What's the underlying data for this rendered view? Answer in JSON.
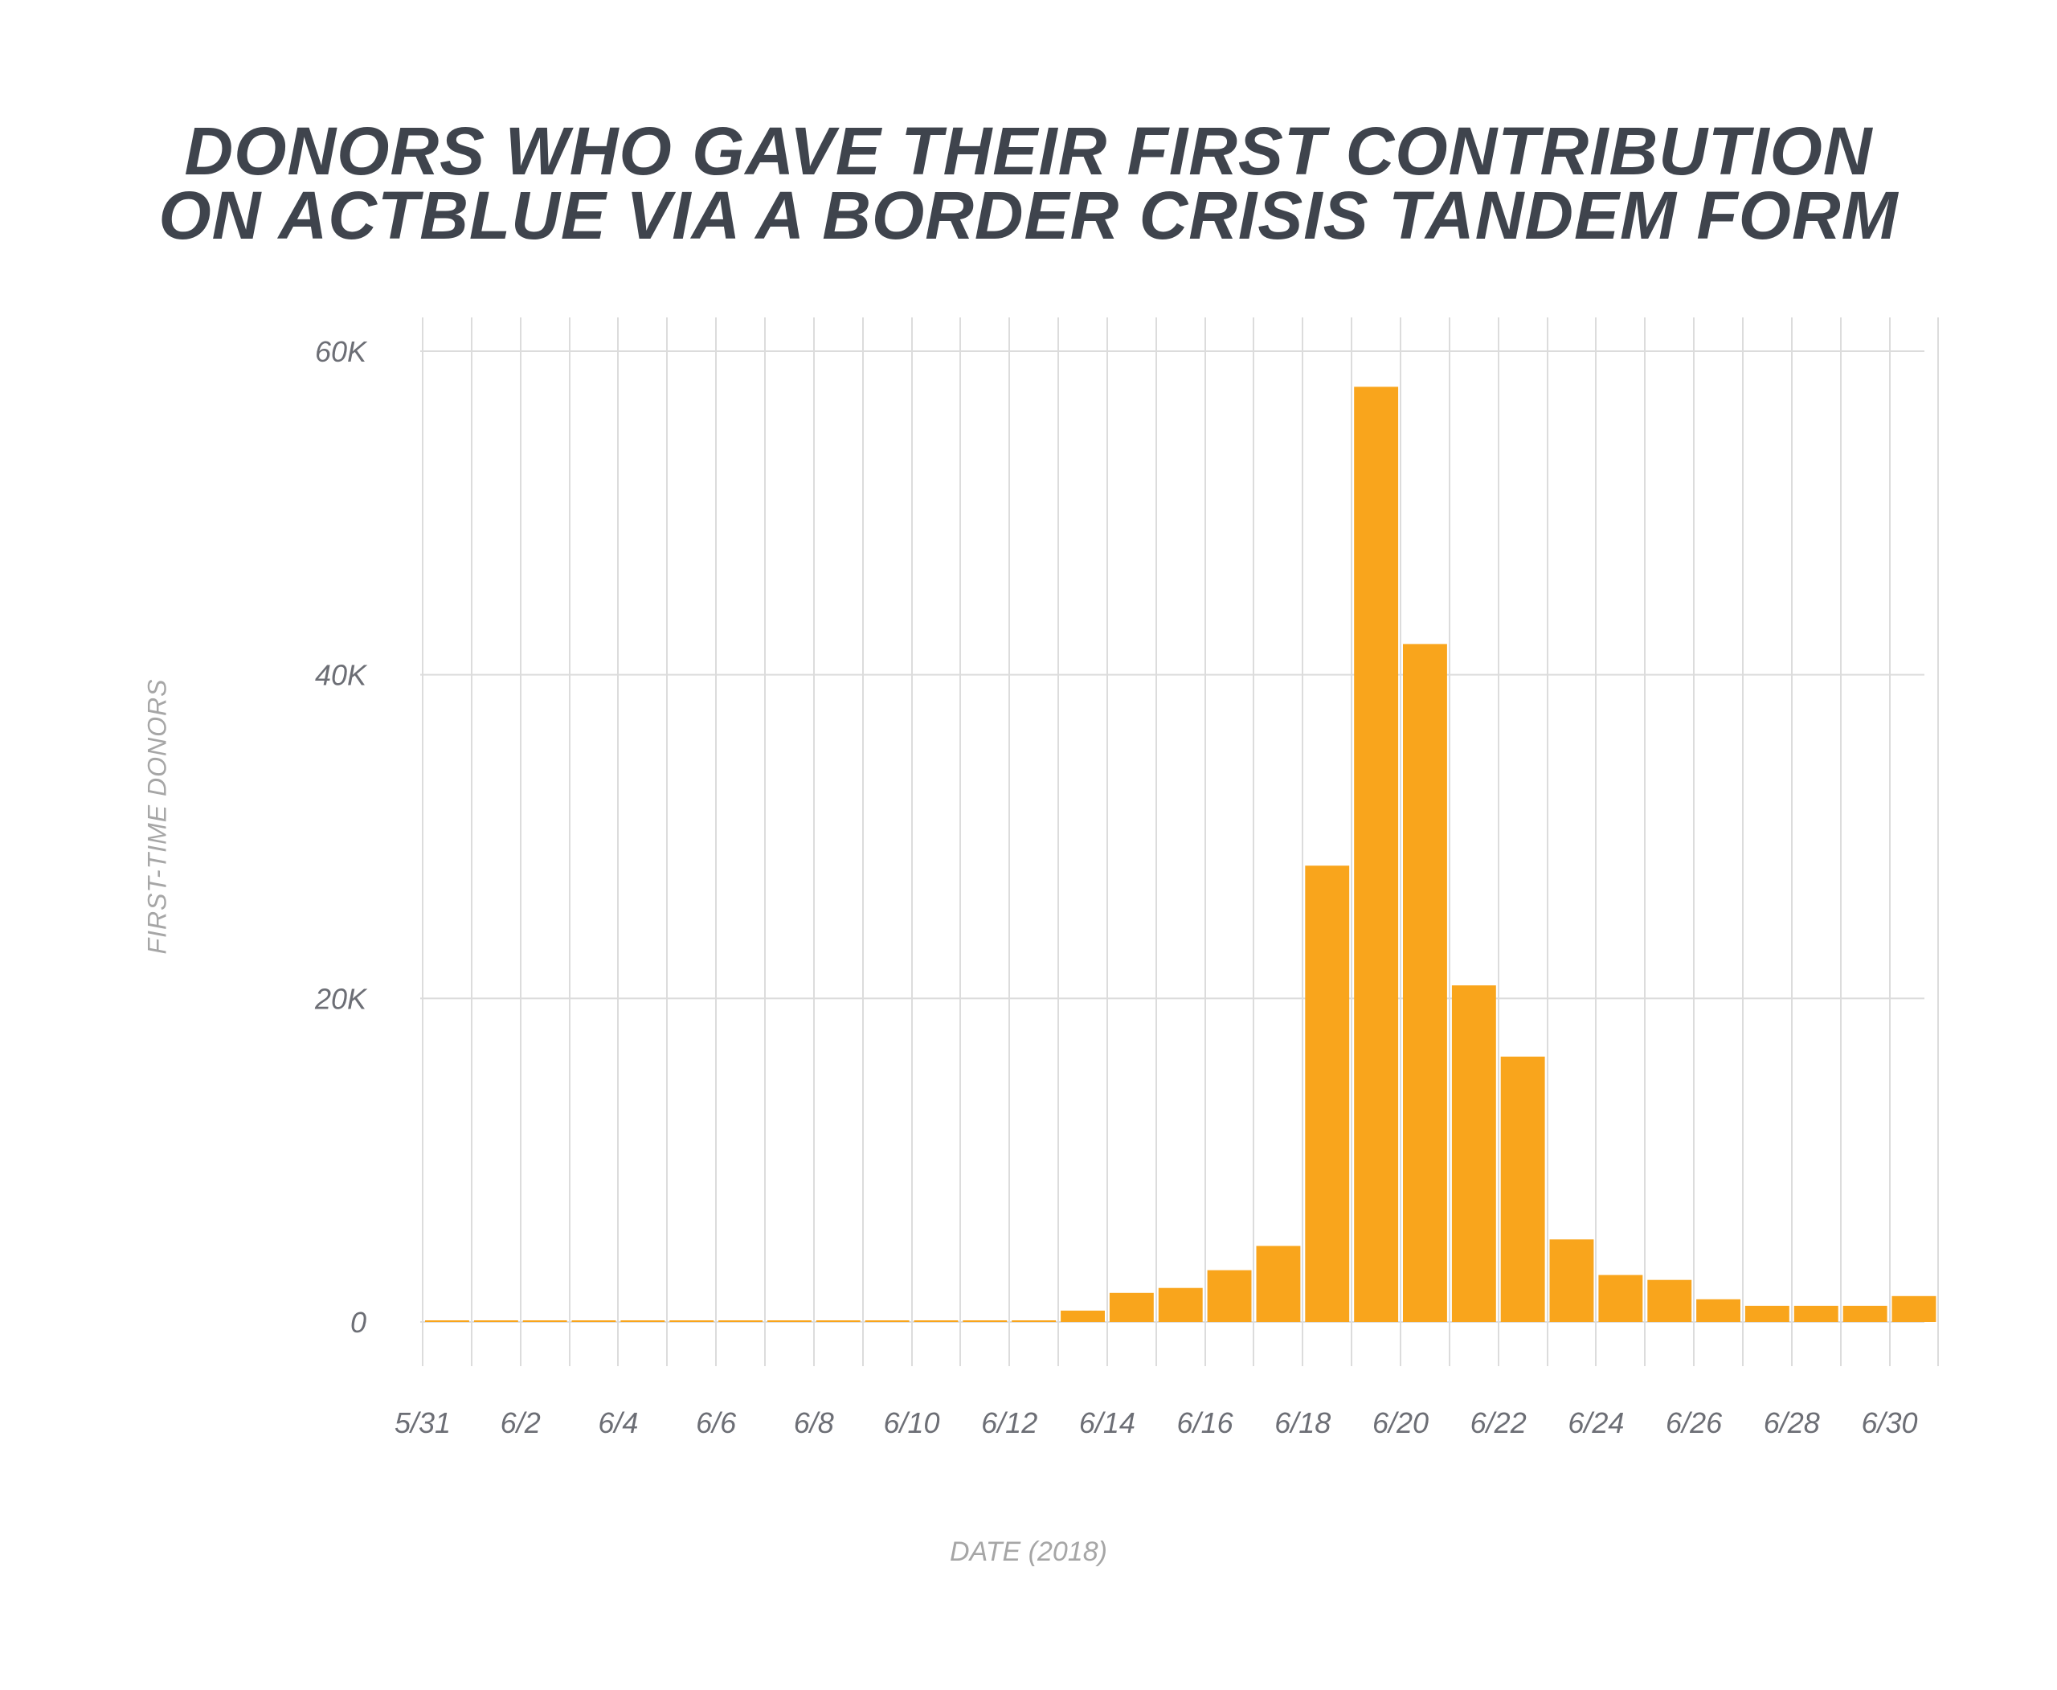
{
  "chart_data": {
    "type": "bar",
    "title_lines": [
      "DONORS WHO GAVE THEIR FIRST CONTRIBUTION",
      "ON ACTBLUE VIA A BORDER CRISIS TANDEM FORM"
    ],
    "xlabel": "DATE (2018)",
    "ylabel": "FIRST-TIME DONORS",
    "categories": [
      "5/31",
      "6/1",
      "6/2",
      "6/3",
      "6/4",
      "6/5",
      "6/6",
      "6/7",
      "6/8",
      "6/9",
      "6/10",
      "6/11",
      "6/12",
      "6/13",
      "6/14",
      "6/15",
      "6/16",
      "6/17",
      "6/18",
      "6/19",
      "6/20",
      "6/21",
      "6/22",
      "6/23",
      "6/24",
      "6/25",
      "6/26",
      "6/27",
      "6/28",
      "6/29",
      "6/30"
    ],
    "x_tick_labels": [
      "5/31",
      "6/2",
      "6/4",
      "6/6",
      "6/8",
      "6/10",
      "6/12",
      "6/14",
      "6/16",
      "6/18",
      "6/20",
      "6/22",
      "6/24",
      "6/26",
      "6/28",
      "6/30"
    ],
    "values": [
      60,
      60,
      60,
      60,
      60,
      60,
      60,
      60,
      60,
      60,
      100,
      60,
      60,
      700,
      1800,
      2100,
      3200,
      4700,
      28200,
      57800,
      41900,
      20800,
      16400,
      5100,
      2900,
      2600,
      1400,
      1000,
      1000,
      1000,
      1600
    ],
    "ylim": [
      0,
      60000
    ],
    "y_ticks": [
      0,
      20000,
      40000,
      60000
    ],
    "y_tick_labels": [
      "0",
      "20K",
      "40K",
      "60K"
    ],
    "grid": true,
    "colors": {
      "bar": "#f9a51c",
      "grid": "#dcdcdc",
      "title": "#3f444d",
      "tick_label": "#6c6e75",
      "axis_title": "#a6a6a6"
    }
  }
}
